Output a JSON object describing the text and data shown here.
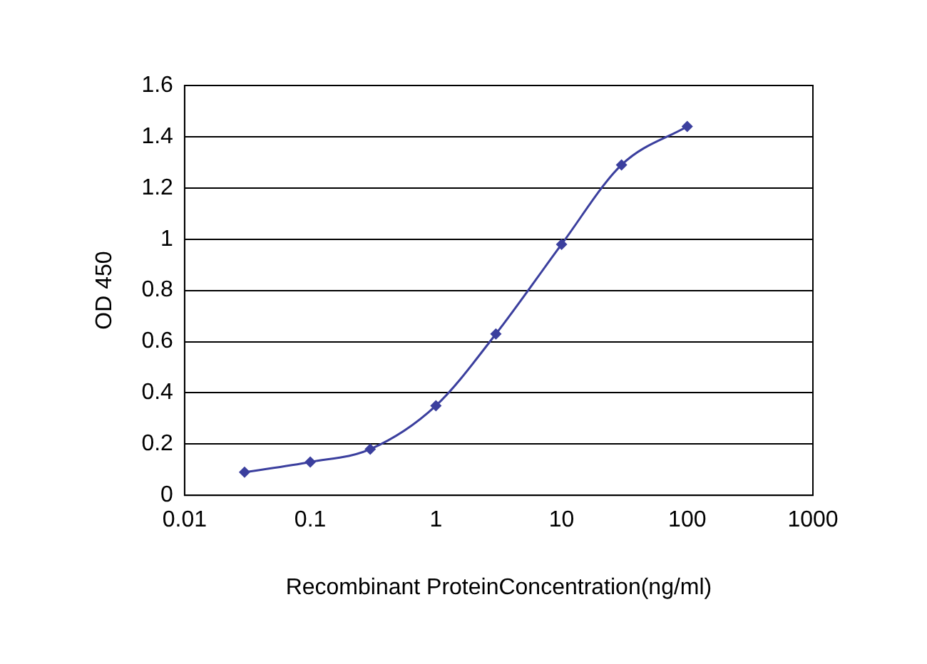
{
  "chart_data": {
    "type": "line",
    "xlabel": "Recombinant ProteinConcentration(ng/ml)",
    "ylabel": "OD 450",
    "x": [
      0.03,
      0.1,
      0.3,
      1,
      3,
      10,
      30,
      100
    ],
    "series": [
      {
        "color": "#3b3f9e",
        "values": [
          0.09,
          0.13,
          0.18,
          0.35,
          0.63,
          0.98,
          1.29,
          1.44
        ]
      }
    ],
    "log": "x",
    "xlim": [
      0.01,
      1000
    ],
    "xticks": [
      0.01,
      0.1,
      1,
      10,
      100,
      1000
    ],
    "ylim": [
      0,
      1.6
    ],
    "yticks": [
      0,
      0.2,
      0.4,
      0.6,
      0.8,
      1,
      1.2,
      1.4,
      1.6
    ],
    "grid": "y",
    "legend": false,
    "marker": "diamond",
    "line_style": "solid"
  }
}
